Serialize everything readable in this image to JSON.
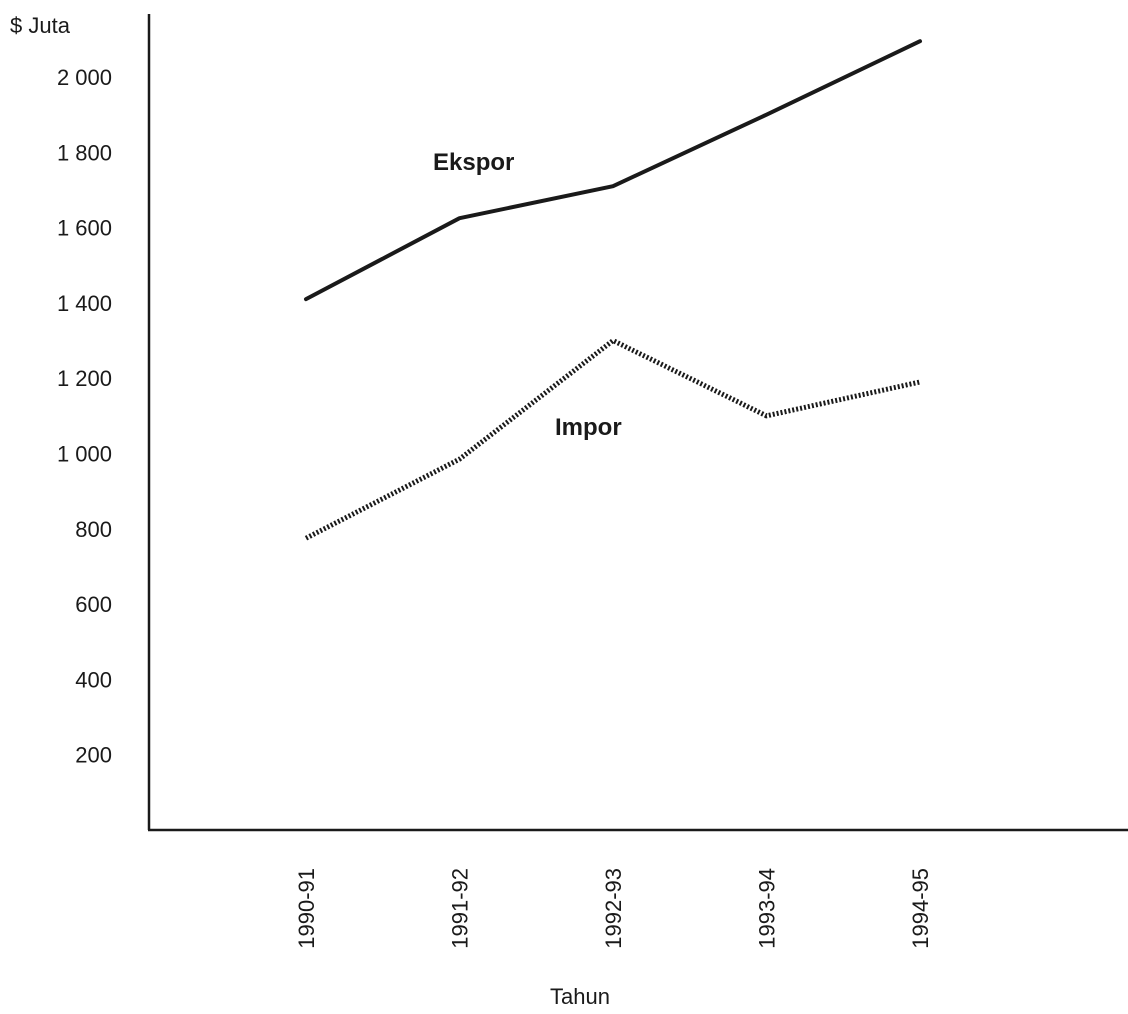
{
  "chart_data": {
    "type": "line",
    "ylabel": "$ Juta",
    "xlabel": "Tahun",
    "categories": [
      "1990-91",
      "1991-92",
      "1992-93",
      "1993-94",
      "1994-95"
    ],
    "y_ticks": [
      "200",
      "400",
      "600",
      "800",
      "1 000",
      "1 200",
      "1 400",
      "1 600",
      "1 800",
      "2 000"
    ],
    "y_tick_values": [
      200,
      400,
      600,
      800,
      1000,
      1200,
      1400,
      1600,
      1800,
      2000
    ],
    "ylim": [
      0,
      2100
    ],
    "grid": false,
    "legend": "none",
    "series": [
      {
        "name": "Ekspor",
        "values": [
          1410,
          1625,
          1710,
          1900,
          2095
        ],
        "style": "solid",
        "color": "#1a1a1a"
      },
      {
        "name": "Impor",
        "values": [
          775,
          985,
          1300,
          1100,
          1190
        ],
        "style": "dotted",
        "color": "#1a1a1a"
      }
    ]
  }
}
